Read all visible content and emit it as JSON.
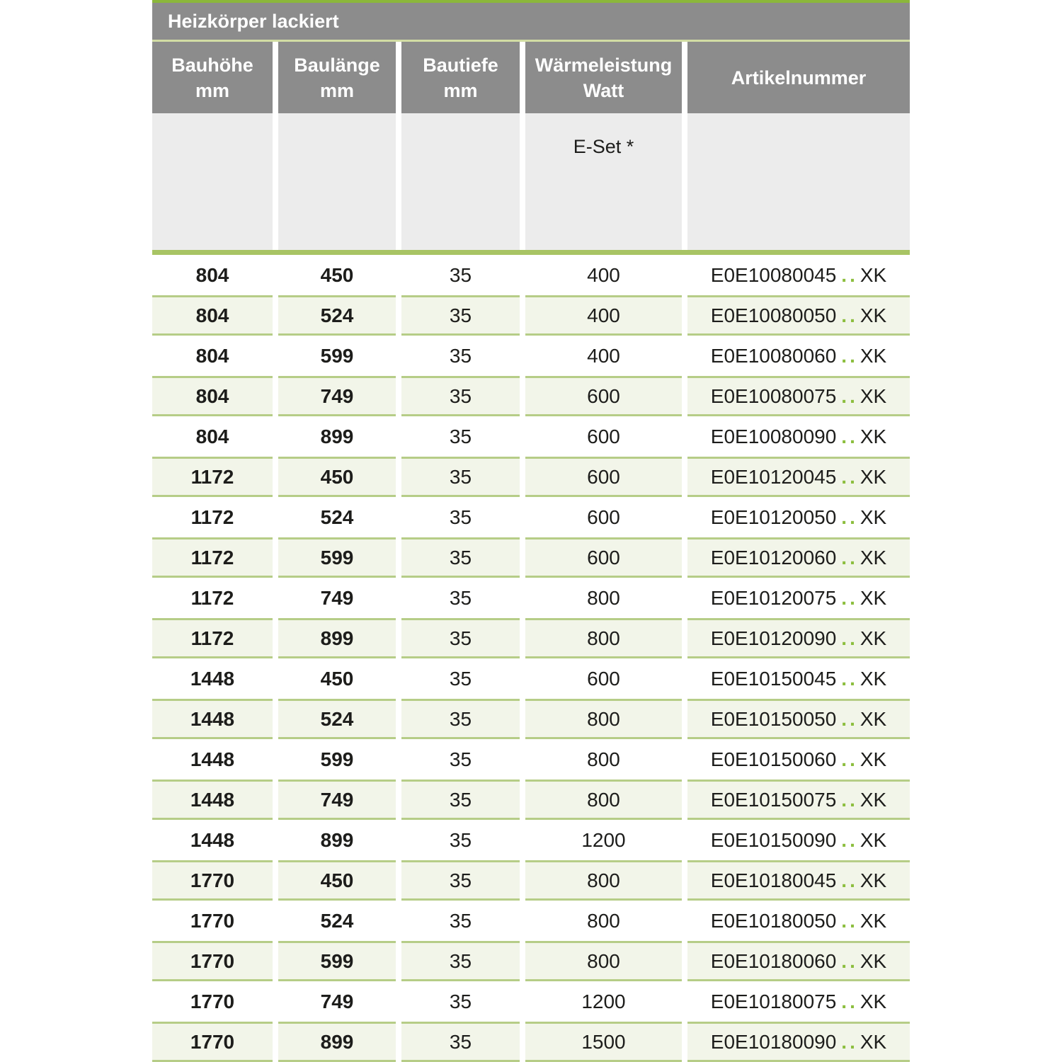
{
  "title": "Heizkörper lackiert",
  "columns": [
    {
      "line1": "Bauhöhe",
      "line2": "mm"
    },
    {
      "line1": "Baulänge",
      "line2": "mm"
    },
    {
      "line1": "Bautiefe",
      "line2": "mm"
    },
    {
      "line1": "Wärmeleistung",
      "line2": "Watt"
    },
    {
      "line1": "Artikelnummer",
      "line2": ""
    }
  ],
  "subheader": {
    "e_set_label": "E-Set *"
  },
  "rows": [
    {
      "bauhoehe": "804",
      "baulaenge": "450",
      "bautiefe": "35",
      "watt": "400",
      "artikel_prefix": "E0E10080045",
      "artikel_dots": "..",
      "artikel_suffix": "XK"
    },
    {
      "bauhoehe": "804",
      "baulaenge": "524",
      "bautiefe": "35",
      "watt": "400",
      "artikel_prefix": "E0E10080050",
      "artikel_dots": "..",
      "artikel_suffix": "XK"
    },
    {
      "bauhoehe": "804",
      "baulaenge": "599",
      "bautiefe": "35",
      "watt": "400",
      "artikel_prefix": "E0E10080060",
      "artikel_dots": "..",
      "artikel_suffix": "XK"
    },
    {
      "bauhoehe": "804",
      "baulaenge": "749",
      "bautiefe": "35",
      "watt": "600",
      "artikel_prefix": "E0E10080075",
      "artikel_dots": "..",
      "artikel_suffix": "XK"
    },
    {
      "bauhoehe": "804",
      "baulaenge": "899",
      "bautiefe": "35",
      "watt": "600",
      "artikel_prefix": "E0E10080090",
      "artikel_dots": "..",
      "artikel_suffix": "XK"
    },
    {
      "bauhoehe": "1172",
      "baulaenge": "450",
      "bautiefe": "35",
      "watt": "600",
      "artikel_prefix": "E0E10120045",
      "artikel_dots": "..",
      "artikel_suffix": "XK"
    },
    {
      "bauhoehe": "1172",
      "baulaenge": "524",
      "bautiefe": "35",
      "watt": "600",
      "artikel_prefix": "E0E10120050",
      "artikel_dots": "..",
      "artikel_suffix": "XK"
    },
    {
      "bauhoehe": "1172",
      "baulaenge": "599",
      "bautiefe": "35",
      "watt": "600",
      "artikel_prefix": "E0E10120060",
      "artikel_dots": "..",
      "artikel_suffix": "XK"
    },
    {
      "bauhoehe": "1172",
      "baulaenge": "749",
      "bautiefe": "35",
      "watt": "800",
      "artikel_prefix": "E0E10120075",
      "artikel_dots": "..",
      "artikel_suffix": "XK"
    },
    {
      "bauhoehe": "1172",
      "baulaenge": "899",
      "bautiefe": "35",
      "watt": "800",
      "artikel_prefix": "E0E10120090",
      "artikel_dots": "..",
      "artikel_suffix": "XK"
    },
    {
      "bauhoehe": "1448",
      "baulaenge": "450",
      "bautiefe": "35",
      "watt": "600",
      "artikel_prefix": "E0E10150045",
      "artikel_dots": "..",
      "artikel_suffix": "XK"
    },
    {
      "bauhoehe": "1448",
      "baulaenge": "524",
      "bautiefe": "35",
      "watt": "800",
      "artikel_prefix": "E0E10150050",
      "artikel_dots": "..",
      "artikel_suffix": "XK"
    },
    {
      "bauhoehe": "1448",
      "baulaenge": "599",
      "bautiefe": "35",
      "watt": "800",
      "artikel_prefix": "E0E10150060",
      "artikel_dots": "..",
      "artikel_suffix": "XK"
    },
    {
      "bauhoehe": "1448",
      "baulaenge": "749",
      "bautiefe": "35",
      "watt": "800",
      "artikel_prefix": "E0E10150075",
      "artikel_dots": "..",
      "artikel_suffix": "XK"
    },
    {
      "bauhoehe": "1448",
      "baulaenge": "899",
      "bautiefe": "35",
      "watt": "1200",
      "artikel_prefix": "E0E10150090",
      "artikel_dots": "..",
      "artikel_suffix": "XK"
    },
    {
      "bauhoehe": "1770",
      "baulaenge": "450",
      "bautiefe": "35",
      "watt": "800",
      "artikel_prefix": "E0E10180045",
      "artikel_dots": "..",
      "artikel_suffix": "XK"
    },
    {
      "bauhoehe": "1770",
      "baulaenge": "524",
      "bautiefe": "35",
      "watt": "800",
      "artikel_prefix": "E0E10180050",
      "artikel_dots": "..",
      "artikel_suffix": "XK"
    },
    {
      "bauhoehe": "1770",
      "baulaenge": "599",
      "bautiefe": "35",
      "watt": "800",
      "artikel_prefix": "E0E10180060",
      "artikel_dots": "..",
      "artikel_suffix": "XK"
    },
    {
      "bauhoehe": "1770",
      "baulaenge": "749",
      "bautiefe": "35",
      "watt": "1200",
      "artikel_prefix": "E0E10180075",
      "artikel_dots": "..",
      "artikel_suffix": "XK"
    },
    {
      "bauhoehe": "1770",
      "baulaenge": "899",
      "bautiefe": "35",
      "watt": "1500",
      "artikel_prefix": "E0E10180090",
      "artikel_dots": "..",
      "artikel_suffix": "XK"
    }
  ],
  "colors": {
    "header_gray": "#8c8c8c",
    "top_line_green": "#8bb73b",
    "title_separator_green": "#d2dda4",
    "thick_line_green": "#a8c464",
    "row_border_green": "#b6cd87",
    "shaded_row_bg": "#f2f5e9",
    "subheader_bg": "#ececec",
    "dots_green": "#8cbe3e",
    "text_color": "#1d1d1b"
  }
}
